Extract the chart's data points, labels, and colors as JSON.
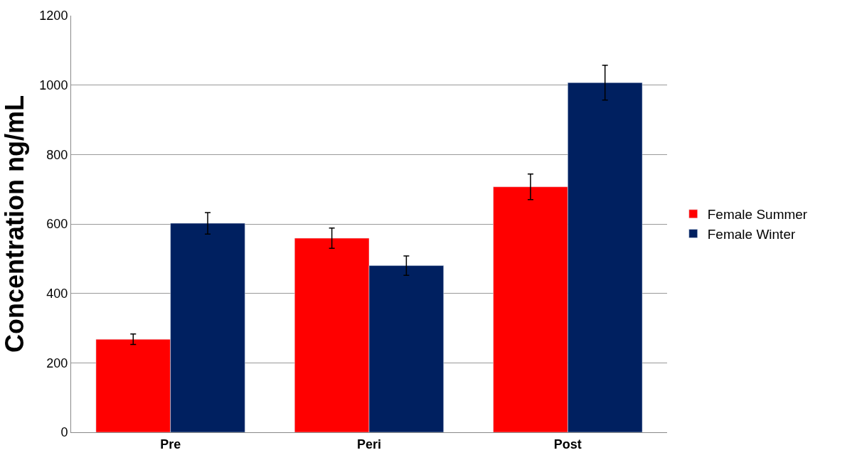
{
  "chart_data": {
    "type": "bar",
    "ylabel": "Concentration ng/mL",
    "categories": [
      "Pre",
      "Peri",
      "Post"
    ],
    "series": [
      {
        "name": "Female Summer",
        "color": "#ff0000",
        "values": [
          268,
          559,
          707
        ],
        "errors": [
          15,
          29,
          37
        ]
      },
      {
        "name": "Female Winter",
        "color": "#002060",
        "values": [
          602,
          480,
          1007
        ],
        "errors": [
          31,
          28,
          50
        ]
      }
    ],
    "ylim": [
      0,
      1200
    ],
    "yticks": [
      0,
      200,
      400,
      600,
      800,
      1000,
      1200
    ],
    "grid": "y",
    "legend": "right"
  }
}
